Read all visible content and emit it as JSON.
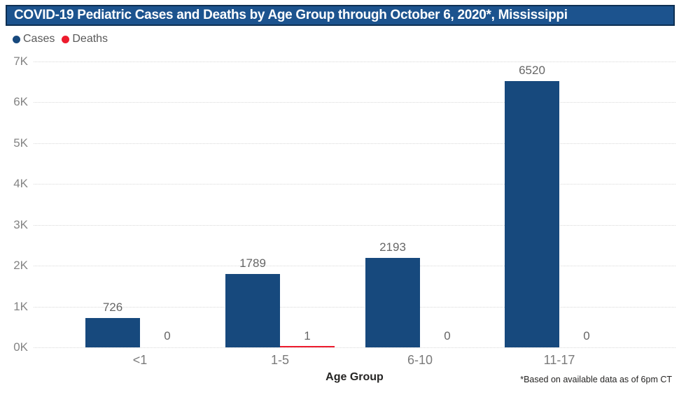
{
  "header": {
    "title": "COVID-19 Pediatric Cases and Deaths by Age Group through October 6, 2020*, Mississippi"
  },
  "legend": [
    {
      "label": "Cases",
      "color": "#17497D"
    },
    {
      "label": "Deaths",
      "color": "#ED1B2D"
    }
  ],
  "chart_data": {
    "type": "bar",
    "title": "COVID-19 Pediatric Cases and Deaths by Age Group through October 6, 2020*, Mississippi",
    "categories": [
      "<1",
      "1-5",
      "6-10",
      "11-17"
    ],
    "series": [
      {
        "name": "Cases",
        "color": "#17497D",
        "values": [
          726,
          1789,
          2193,
          6520
        ]
      },
      {
        "name": "Deaths",
        "color": "#ED1B2D",
        "values": [
          0,
          1,
          0,
          0
        ]
      }
    ],
    "xlabel": "Age Group",
    "ylabel": "",
    "ylim": [
      0,
      7000
    ],
    "yticks": [
      "0K",
      "1K",
      "2K",
      "3K",
      "4K",
      "5K",
      "6K",
      "7K"
    ],
    "ytick_values": [
      0,
      1000,
      2000,
      3000,
      4000,
      5000,
      6000,
      7000
    ],
    "grid": "horizontal-dotted",
    "legend_position": "top-left",
    "data_labels": true
  },
  "footnote": "*Based on available data as of 6pm CT"
}
